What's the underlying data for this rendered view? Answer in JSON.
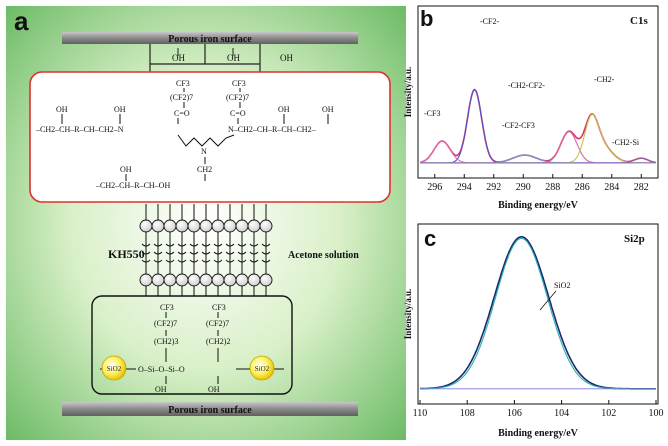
{
  "panel_a": {
    "letter": "a",
    "top_surface_label": "Porous iron surface",
    "bottom_surface_label": "Porous iron surface",
    "top_oh": [
      "OH",
      "OH",
      "OH"
    ],
    "kh550_label": "KH550",
    "solution_label": "Acetone solution",
    "upper_box": {
      "cf3": [
        "CF3",
        "CF3"
      ],
      "cf2n": [
        "(CF2)7",
        "(CF2)7"
      ],
      "co": [
        "C=O",
        "C=O"
      ],
      "oh": [
        "OH",
        "OH",
        "OH",
        "OH",
        "OH"
      ],
      "chain_left": "–CH2–CH–R–CH–CH2–N",
      "chain_right": "N–CH2–CH–R–CH–CH2–",
      "ch2_center": "CH2",
      "n_center": "N",
      "bottom_chain": "–CH2–CH–R–CH–OH"
    },
    "lower_box": {
      "cf3": [
        "CF3",
        "CF3"
      ],
      "cf2n": [
        "(CF2)7",
        "(CF2)7"
      ],
      "ch2n": [
        "(CH2)3",
        "(CH2)2"
      ],
      "si_chain": "O–Si–O–Si–O",
      "sio2_left": "SiO2",
      "sio2_right": "SiO2",
      "oh_bottom": [
        "OH",
        "OH"
      ]
    }
  },
  "chart_data": [
    {
      "type": "line",
      "panel": "b",
      "title": "C1s",
      "xlabel": "Binding energy/eV",
      "ylabel": "Intensity/a.u.",
      "x_reversed": true,
      "xlim": [
        297,
        281
      ],
      "xticks": [
        296,
        294,
        292,
        290,
        288,
        286,
        284,
        282
      ],
      "ylim": [
        0,
        1
      ],
      "y_tick_labels": false,
      "peak_labels": [
        "-CF3",
        "-CF2-",
        "-CF2-CF3",
        "-CH2-CF2-",
        "-CH2-",
        "-CH2-Si"
      ],
      "series": [
        {
          "color": "#d9336b",
          "peaks": [
            [
              295.5,
              0.14,
              0.55
            ],
            [
              293.3,
              0.47,
              0.48
            ],
            [
              289.9,
              0.05,
              0.8
            ],
            [
              286.9,
              0.2,
              0.55
            ],
            [
              285.4,
              0.22,
              0.45
            ],
            [
              284.8,
              0.12,
              0.75
            ],
            [
              282.0,
              0.03,
              0.45
            ]
          ]
        },
        {
          "color": "#4b58c9",
          "peaks": [
            [
              293.3,
              0.47,
              0.48
            ]
          ]
        },
        {
          "color": "#5aa8d6",
          "peaks": [
            [
              289.9,
              0.05,
              0.8
            ]
          ]
        },
        {
          "color": "#d96fb8",
          "peaks": [
            [
              295.5,
              0.14,
              0.55
            ]
          ]
        },
        {
          "color": "#d86a9f",
          "peaks": [
            [
              286.9,
              0.2,
              0.55
            ]
          ]
        },
        {
          "color": "#c7bf4a",
          "peaks": [
            [
              285.4,
              0.22,
              0.45
            ],
            [
              284.8,
              0.12,
              0.75
            ]
          ]
        },
        {
          "color": "#8a6b9e",
          "peaks": [
            [
              282.0,
              0.03,
              0.45
            ]
          ]
        }
      ]
    },
    {
      "type": "line",
      "panel": "c",
      "title": "Si2p",
      "xlabel": "Binding energy/eV",
      "ylabel": "Intensity/a.u.",
      "x_reversed": true,
      "xlim": [
        110,
        100
      ],
      "xticks": [
        110,
        108,
        106,
        104,
        102,
        100
      ],
      "ylim": [
        0,
        1
      ],
      "y_tick_labels": false,
      "peak_labels": [
        "SiO2"
      ],
      "series": [
        {
          "color": "#1a2a6c",
          "peaks": [
            [
              105.7,
              0.95,
              1.15
            ]
          ]
        },
        {
          "color": "#2ab0b0",
          "peaks": [
            [
              105.7,
              0.94,
              1.1
            ]
          ]
        }
      ]
    }
  ]
}
